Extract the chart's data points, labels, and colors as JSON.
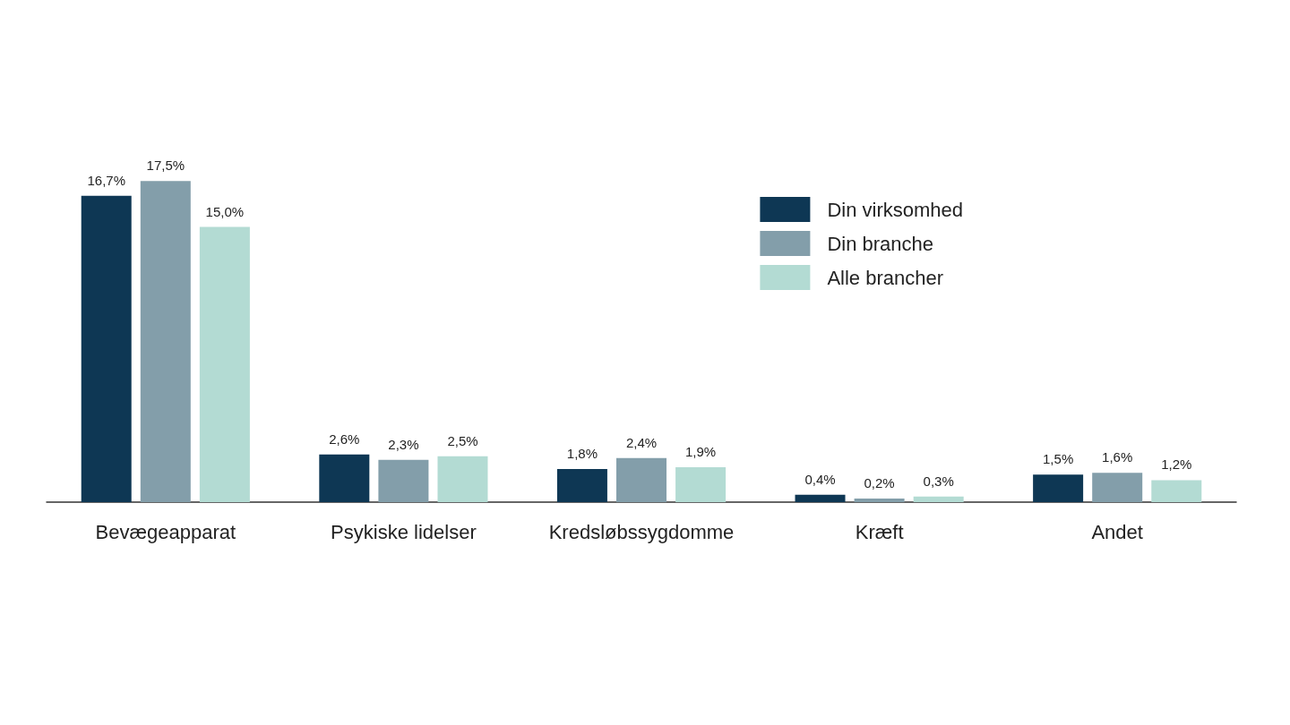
{
  "chart_data": {
    "type": "bar",
    "categories": [
      "Bevægeapparat",
      "Psykiske lidelser",
      "Kredsløbssygdomme",
      "Kræft",
      "Andet"
    ],
    "series": [
      {
        "name": "Din virksomhed",
        "color": "#0e3754",
        "values": [
          16.7,
          2.6,
          1.8,
          0.4,
          1.5
        ],
        "value_labels": [
          "16,7%",
          "2,6%",
          "1,8%",
          "0,4%",
          "1,5%"
        ]
      },
      {
        "name": "Din branche",
        "color": "#839eaa",
        "values": [
          17.5,
          2.3,
          2.4,
          0.2,
          1.6
        ],
        "value_labels": [
          "17,5%",
          "2,3%",
          "2,4%",
          "0,2%",
          "1,6%"
        ]
      },
      {
        "name": "Alle brancher",
        "color": "#b3dbd3",
        "values": [
          15.0,
          2.5,
          1.9,
          0.3,
          1.2
        ],
        "value_labels": [
          "15,0%",
          "2,5%",
          "1,9%",
          "0,3%",
          "1,2%"
        ]
      }
    ],
    "legend": "top right"
  }
}
